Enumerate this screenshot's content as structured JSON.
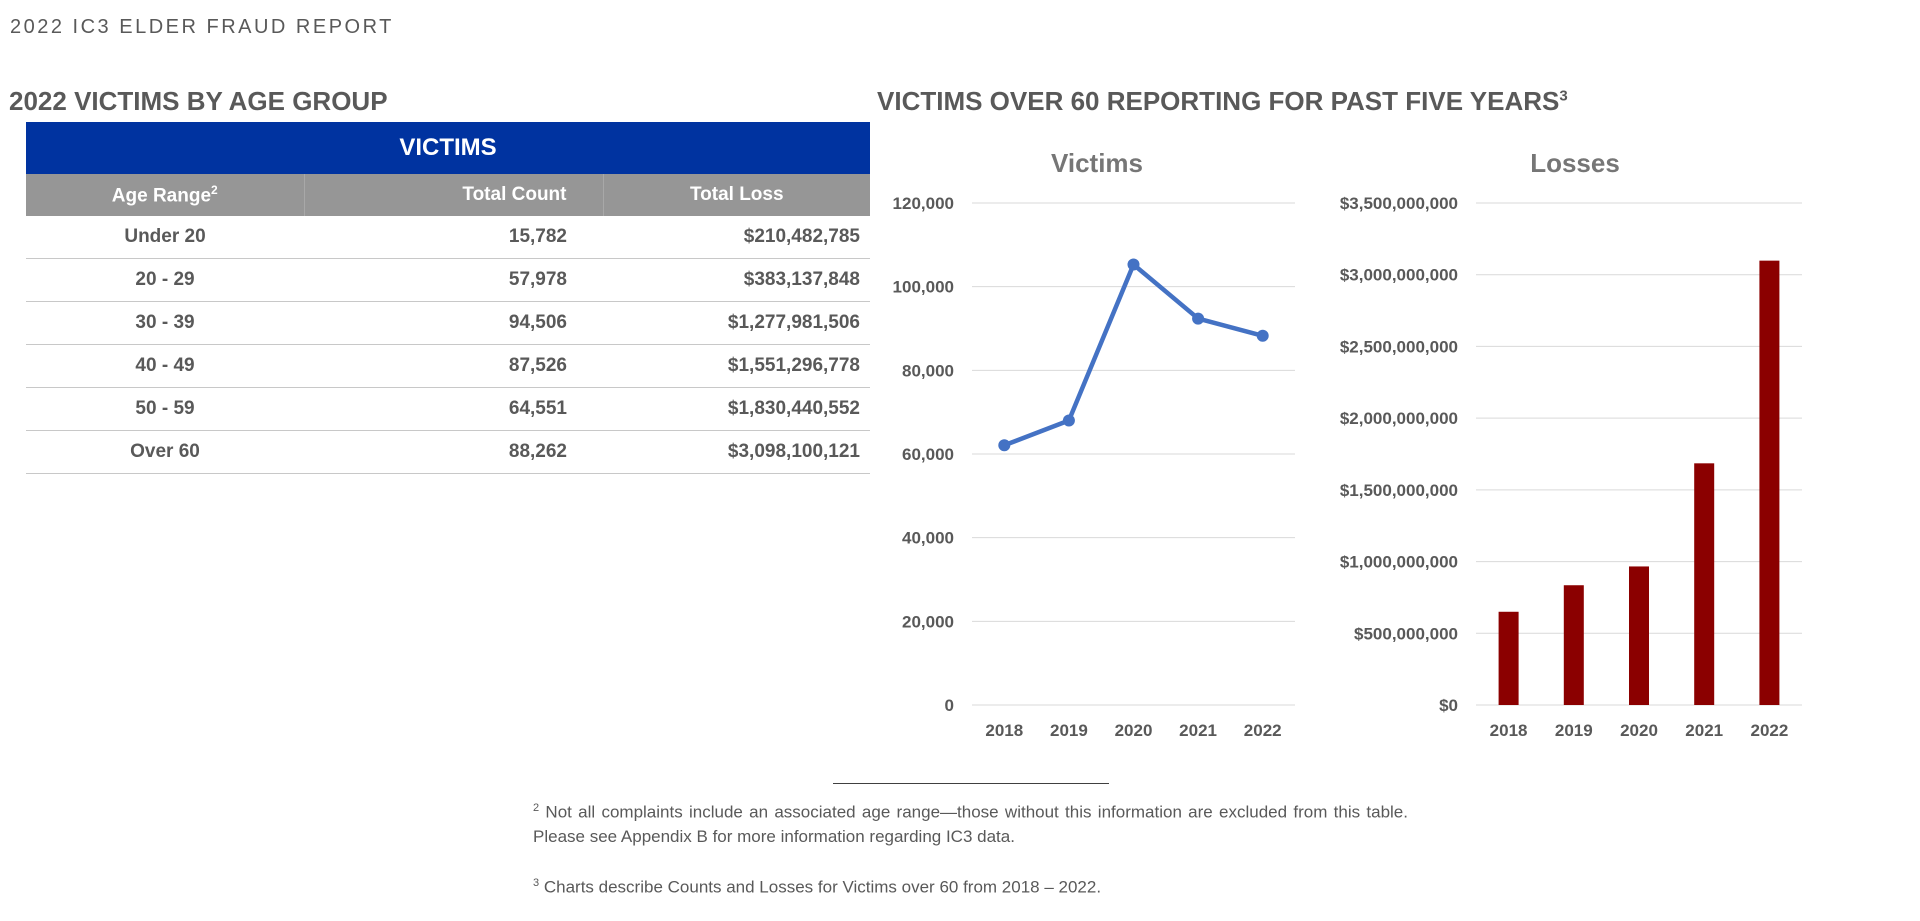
{
  "report": {
    "title": "2022 IC3 ELDER FRAUD REPORT"
  },
  "left_section": {
    "title": "2022 VICTIMS BY AGE GROUP"
  },
  "right_section": {
    "title": "VICTIMS OVER 60 REPORTING FOR PAST FIVE YEARS",
    "footnote_mark": "3"
  },
  "table": {
    "header": "VICTIMS",
    "columns": {
      "age": "Age Range",
      "age_mark": "2",
      "count": "Total Count",
      "loss": "Total Loss"
    },
    "rows": [
      {
        "age": "Under 20",
        "count": "15,782",
        "loss": "$210,482,785"
      },
      {
        "age": "20 - 29",
        "count": "57,978",
        "loss": "$383,137,848"
      },
      {
        "age": "30 - 39",
        "count": "94,506",
        "loss": "$1,277,981,506"
      },
      {
        "age": "40 - 49",
        "count": "87,526",
        "loss": "$1,551,296,778"
      },
      {
        "age": "50 - 59",
        "count": "64,551",
        "loss": "$1,830,440,552"
      },
      {
        "age": "Over 60",
        "count": "88,262",
        "loss": "$3,098,100,121"
      }
    ]
  },
  "chart_data": [
    {
      "type": "line",
      "title": "Victims",
      "x": [
        "2018",
        "2019",
        "2020",
        "2021",
        "2022"
      ],
      "series": [
        {
          "values": [
            62085,
            68013,
            105301,
            92371,
            88262
          ],
          "color": "#4472c4"
        }
      ],
      "ylim": [
        0,
        120000
      ],
      "yticks": [
        0,
        20000,
        40000,
        60000,
        80000,
        100000,
        120000
      ],
      "ytick_labels": [
        "0",
        "20,000",
        "40,000",
        "60,000",
        "80,000",
        "100,000",
        "120,000"
      ],
      "grid": true
    },
    {
      "type": "bar",
      "title": "Losses",
      "categories": [
        "2018",
        "2019",
        "2020",
        "2021",
        "2022"
      ],
      "values": [
        650000000,
        835000000,
        966000000,
        1685000000,
        3098100121
      ],
      "color": "#8b0000",
      "ylim": [
        0,
        3500000000
      ],
      "yticks": [
        0,
        500000000,
        1000000000,
        1500000000,
        2000000000,
        2500000000,
        3000000000,
        3500000000
      ],
      "ytick_labels": [
        "$0",
        "$500,000,000",
        "$1,000,000,000",
        "$1,500,000,000",
        "$2,000,000,000",
        "$2,500,000,000",
        "$3,000,000,000",
        "$3,500,000,000"
      ],
      "grid": true
    }
  ],
  "footnotes": [
    {
      "mark": "2",
      "text": "Not all complaints include an associated age range—those without this information are excluded from this table. Please see Appendix B for more information regarding IC3 data."
    },
    {
      "mark": "3",
      "text": "Charts describe Counts and Losses for Victims over 60 from 2018 – 2022."
    }
  ]
}
